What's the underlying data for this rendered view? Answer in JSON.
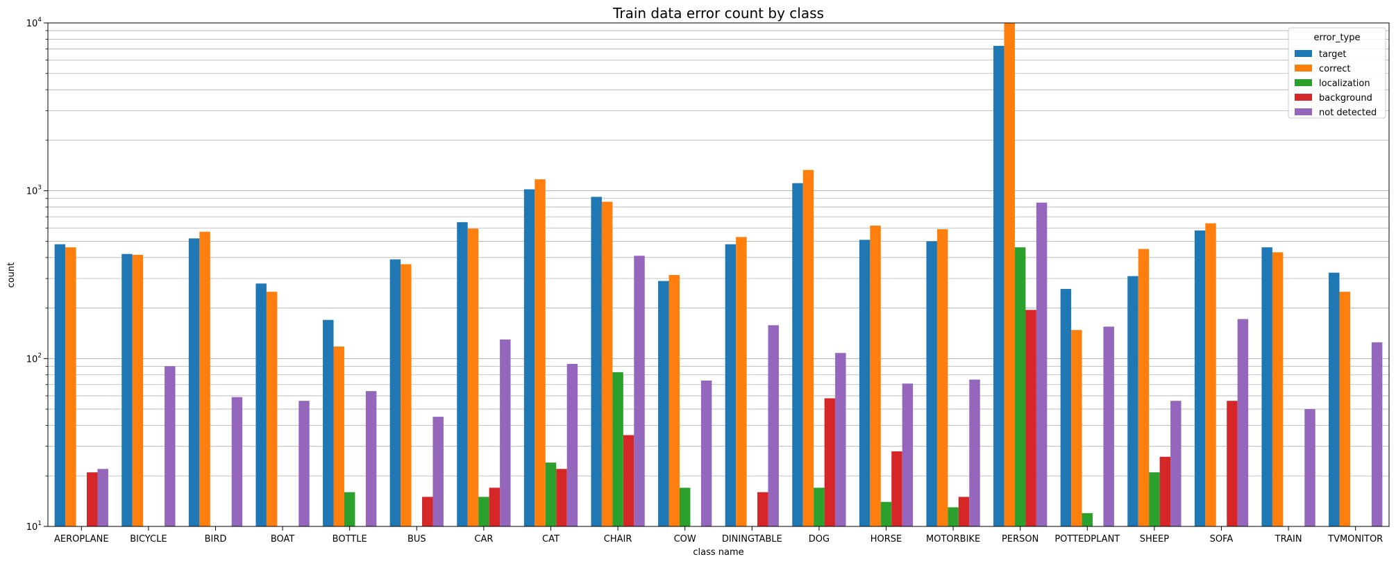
{
  "chart_data": {
    "type": "bar",
    "title": "Train data error count by class",
    "xlabel": "class name",
    "ylabel": "count",
    "yscale": "log",
    "ylim": [
      10,
      10000
    ],
    "y_tick_labels": [
      {
        "value": 10,
        "base": "10",
        "exp": "1"
      },
      {
        "value": 100,
        "base": "10",
        "exp": "2"
      },
      {
        "value": 1000,
        "base": "10",
        "exp": "3"
      },
      {
        "value": 10000,
        "base": "10",
        "exp": "4"
      }
    ],
    "grid": "y (major and minor)",
    "legend": {
      "title": "error_type",
      "placement": "top-right"
    },
    "categories": [
      "AEROPLANE",
      "BICYCLE",
      "BIRD",
      "BOAT",
      "BOTTLE",
      "BUS",
      "CAR",
      "CAT",
      "CHAIR",
      "COW",
      "DININGTABLE",
      "DOG",
      "HORSE",
      "MOTORBIKE",
      "PERSON",
      "POTTEDPLANT",
      "SHEEP",
      "SOFA",
      "TRAIN",
      "TVMONITOR"
    ],
    "series": [
      {
        "name": "target",
        "color": "#1f77b4",
        "values": [
          480,
          420,
          520,
          280,
          170,
          390,
          650,
          1020,
          920,
          290,
          480,
          1110,
          510,
          500,
          7300,
          260,
          310,
          580,
          460,
          325
        ]
      },
      {
        "name": "correct",
        "color": "#ff7f0e",
        "values": [
          460,
          415,
          570,
          250,
          118,
          365,
          595,
          1170,
          860,
          315,
          530,
          1330,
          620,
          590,
          10000,
          148,
          450,
          640,
          430,
          250
        ]
      },
      {
        "name": "localization",
        "color": "#2ca02c",
        "values": [
          null,
          null,
          null,
          null,
          16,
          null,
          15,
          24,
          83,
          17,
          null,
          17,
          14,
          13,
          460,
          12,
          21,
          null,
          null,
          null
        ]
      },
      {
        "name": "background",
        "color": "#d62728",
        "values": [
          21,
          null,
          null,
          null,
          null,
          15,
          17,
          22,
          35,
          null,
          16,
          58,
          28,
          15,
          195,
          null,
          26,
          56,
          null,
          null
        ]
      },
      {
        "name": "not detected",
        "color": "#9467bd",
        "values": [
          22,
          90,
          59,
          56,
          64,
          45,
          130,
          93,
          410,
          74,
          158,
          108,
          71,
          75,
          850,
          155,
          56,
          172,
          50,
          125
        ]
      }
    ]
  }
}
